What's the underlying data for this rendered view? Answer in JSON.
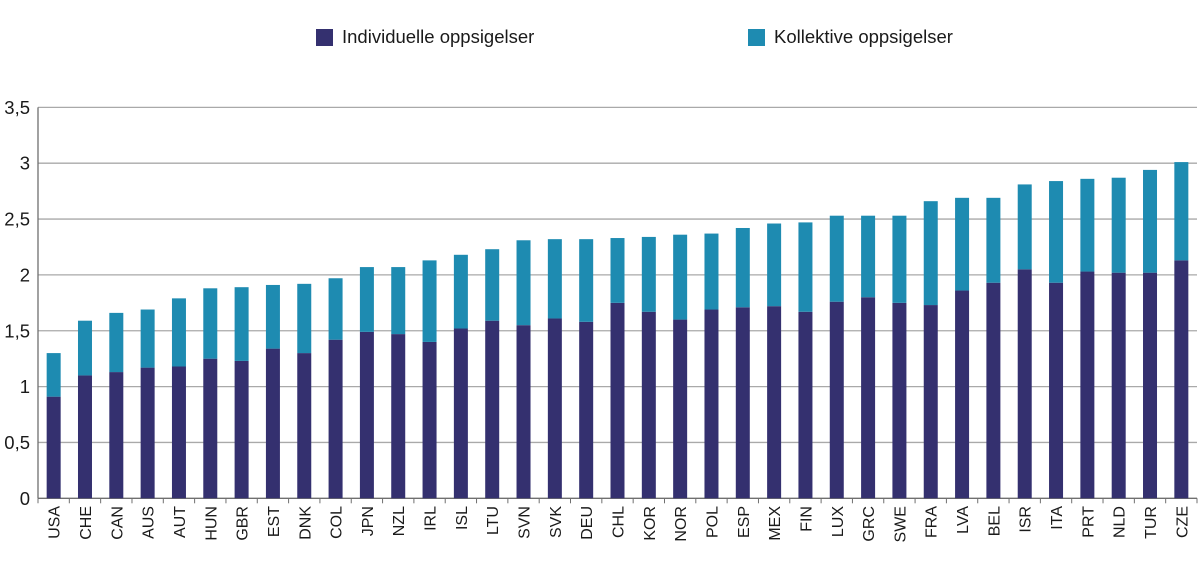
{
  "legend": {
    "items": [
      {
        "label": "Individuelle oppsigelser",
        "color": "#34306F"
      },
      {
        "label": "Kollektive oppsigelser",
        "color": "#1E8BB1"
      }
    ]
  },
  "chart_data": {
    "type": "bar",
    "stacked": true,
    "title": "",
    "xlabel": "",
    "ylabel": "",
    "grid": "horizontal",
    "legend_position": "top",
    "x_tick_label_rotation": -90,
    "ylim": [
      0,
      3.5
    ],
    "y_ticks": [
      {
        "value": 0,
        "label": "0"
      },
      {
        "value": 0.5,
        "label": "0,5"
      },
      {
        "value": 1,
        "label": "1"
      },
      {
        "value": 1.5,
        "label": "1,5"
      },
      {
        "value": 2,
        "label": "2"
      },
      {
        "value": 2.5,
        "label": "2,5"
      },
      {
        "value": 3,
        "label": "3"
      },
      {
        "value": 3.5,
        "label": "3,5"
      }
    ],
    "categories": [
      "USA",
      "CHE",
      "CAN",
      "AUS",
      "AUT",
      "HUN",
      "GBR",
      "EST",
      "DNK",
      "COL",
      "JPN",
      "NZL",
      "IRL",
      "ISL",
      "LTU",
      "SVN",
      "SVK",
      "DEU",
      "CHL",
      "KOR",
      "NOR",
      "POL",
      "ESP",
      "MEX",
      "FIN",
      "LUX",
      "GRC",
      "SWE",
      "FRA",
      "LVA",
      "BEL",
      "ISR",
      "ITA",
      "PRT",
      "NLD",
      "TUR",
      "CZE"
    ],
    "series": [
      {
        "name": "Individuelle oppsigelser",
        "color": "#34306F",
        "values": [
          0.91,
          1.1,
          1.13,
          1.17,
          1.18,
          1.25,
          1.23,
          1.34,
          1.3,
          1.42,
          1.49,
          1.47,
          1.4,
          1.52,
          1.59,
          1.55,
          1.61,
          1.58,
          1.75,
          1.67,
          1.6,
          1.69,
          1.71,
          1.72,
          1.67,
          1.76,
          1.8,
          1.75,
          1.73,
          1.86,
          1.93,
          2.05,
          1.93,
          2.03,
          2.02,
          2.02,
          2.13
        ],
        "totals_note": "dark navy lower stacked segment"
      },
      {
        "name": "Kollektive oppsigelser",
        "color": "#1E8BB1",
        "values": [
          0.39,
          0.49,
          0.53,
          0.52,
          0.61,
          0.63,
          0.66,
          0.57,
          0.62,
          0.55,
          0.58,
          0.6,
          0.73,
          0.66,
          0.64,
          0.76,
          0.71,
          0.74,
          0.58,
          0.67,
          0.76,
          0.68,
          0.71,
          0.74,
          0.8,
          0.77,
          0.73,
          0.78,
          0.93,
          0.83,
          0.76,
          0.76,
          0.91,
          0.83,
          0.85,
          0.92,
          0.88
        ],
        "totals_note": "teal upper stacked segment"
      }
    ]
  },
  "colors": {
    "gridline": "#a9a9a9",
    "axis": "#6f6f6f",
    "tick_label": "#1a1a1a"
  }
}
